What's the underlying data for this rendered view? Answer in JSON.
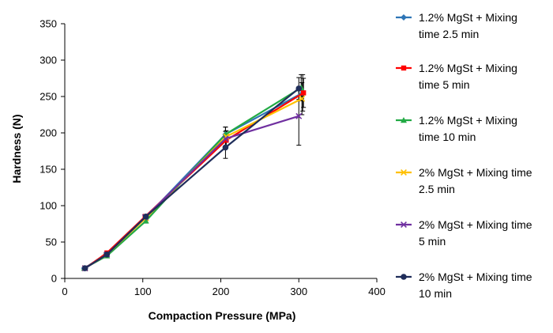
{
  "chart_data": {
    "type": "line",
    "xlabel": "Compaction Pressure (MPa)",
    "ylabel": "Hardness (N)",
    "xlim": [
      0,
      400
    ],
    "ylim": [
      0,
      350
    ],
    "xticks": [
      0,
      100,
      200,
      300,
      400
    ],
    "yticks": [
      0,
      50,
      100,
      150,
      200,
      250,
      300,
      350
    ],
    "grid": false,
    "legend_position": "right",
    "series": [
      {
        "name_lines": [
          "1.2% MgSt + Mixing",
          "time 2.5 min"
        ],
        "color": "#2e75b6",
        "marker": "diamond",
        "points": [
          [
            25,
            14
          ],
          [
            53,
            33
          ],
          [
            104,
            84
          ],
          [
            206,
            198
          ],
          [
            305,
            255
          ]
        ],
        "errors": [
          1,
          2,
          3,
          10,
          25
        ]
      },
      {
        "name_lines": [
          "1.2% MgSt + Mixing",
          "time 5 min"
        ],
        "color": "#ff0000",
        "marker": "square",
        "points": [
          [
            26,
            14
          ],
          [
            54,
            35
          ],
          [
            103,
            85
          ],
          [
            207,
            190
          ],
          [
            306,
            255
          ]
        ],
        "errors": [
          1,
          2,
          3,
          8,
          20
        ]
      },
      {
        "name_lines": [
          "1.2% MgSt + Mixing",
          "time 10 min"
        ],
        "color": "#22aa44",
        "marker": "triangle",
        "points": [
          [
            25,
            14
          ],
          [
            54,
            31
          ],
          [
            104,
            79
          ],
          [
            206,
            198
          ],
          [
            303,
            262
          ]
        ],
        "errors": [
          1,
          2,
          3,
          10,
          18
        ]
      },
      {
        "name_lines": [
          "2% MgSt + Mixing time",
          "2.5 min"
        ],
        "color": "#ffc000",
        "marker": "x",
        "points": [
          [
            26,
            14
          ],
          [
            54,
            33
          ],
          [
            104,
            83
          ],
          [
            207,
            195
          ],
          [
            304,
            247
          ]
        ],
        "errors": [
          1,
          2,
          3,
          8,
          22
        ]
      },
      {
        "name_lines": [
          "2% MgSt + Mixing time",
          "5 min"
        ],
        "color": "#7030a0",
        "marker": "x",
        "points": [
          [
            26,
            14
          ],
          [
            54,
            33
          ],
          [
            103,
            84
          ],
          [
            206,
            192
          ],
          [
            300,
            223
          ]
        ],
        "errors": [
          1,
          2,
          3,
          10,
          40
        ]
      },
      {
        "name_lines": [
          "2% MgSt + Mixing time",
          "10 min"
        ],
        "color": "#1f2d5a",
        "marker": "circle",
        "points": [
          [
            26,
            14
          ],
          [
            54,
            33
          ],
          [
            104,
            85
          ],
          [
            206,
            180
          ],
          [
            300,
            261
          ]
        ],
        "errors": [
          1,
          2,
          3,
          15,
          15
        ]
      }
    ]
  }
}
